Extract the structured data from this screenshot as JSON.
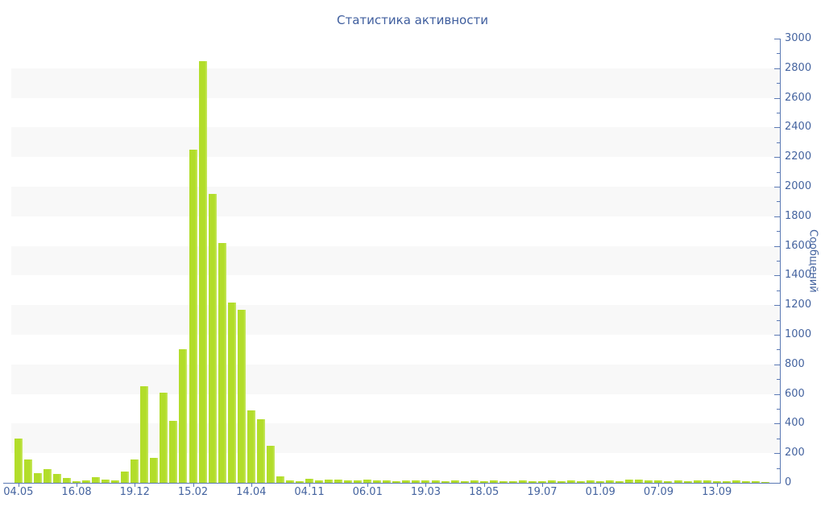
{
  "title": "Статистика активности",
  "colors": {
    "bar": "#b2dd2a",
    "bar_edge": "#c9e766",
    "axis": "#5b79b4",
    "label": "#44639f",
    "title": "#3f5e9e",
    "band": "#f8f8f8"
  },
  "chart_data": {
    "type": "bar",
    "title": "Статистика активности",
    "xlabel": "",
    "ylabel": "Сообщений",
    "ylim": [
      0,
      3000
    ],
    "y_major_step": 200,
    "y_minor_step": 100,
    "grid": "alternating-horizontal-bands",
    "legend_position": "none",
    "x_tick_every": 6,
    "x_tick_labels": [
      "04.05",
      "16.08",
      "19.12",
      "15.02",
      "14.04",
      "04.11",
      "06.01",
      "19.03",
      "18.05",
      "19.07",
      "01.09",
      "07.09",
      "13.09"
    ],
    "values": [
      300,
      160,
      65,
      95,
      60,
      35,
      13,
      18,
      36,
      22,
      18,
      75,
      160,
      650,
      170,
      610,
      420,
      900,
      2250,
      2850,
      1950,
      1620,
      1220,
      1170,
      490,
      430,
      250,
      45,
      15,
      13,
      25,
      18,
      24,
      24,
      15,
      15,
      20,
      15,
      15,
      11,
      15,
      15,
      15,
      18,
      12,
      14,
      12,
      14,
      12,
      14,
      12,
      12,
      14,
      12,
      12,
      14,
      12,
      14,
      12,
      14,
      12,
      14,
      12,
      22,
      22,
      14,
      14,
      12,
      14,
      12,
      14,
      14,
      12,
      12,
      14,
      12,
      10,
      8
    ]
  }
}
